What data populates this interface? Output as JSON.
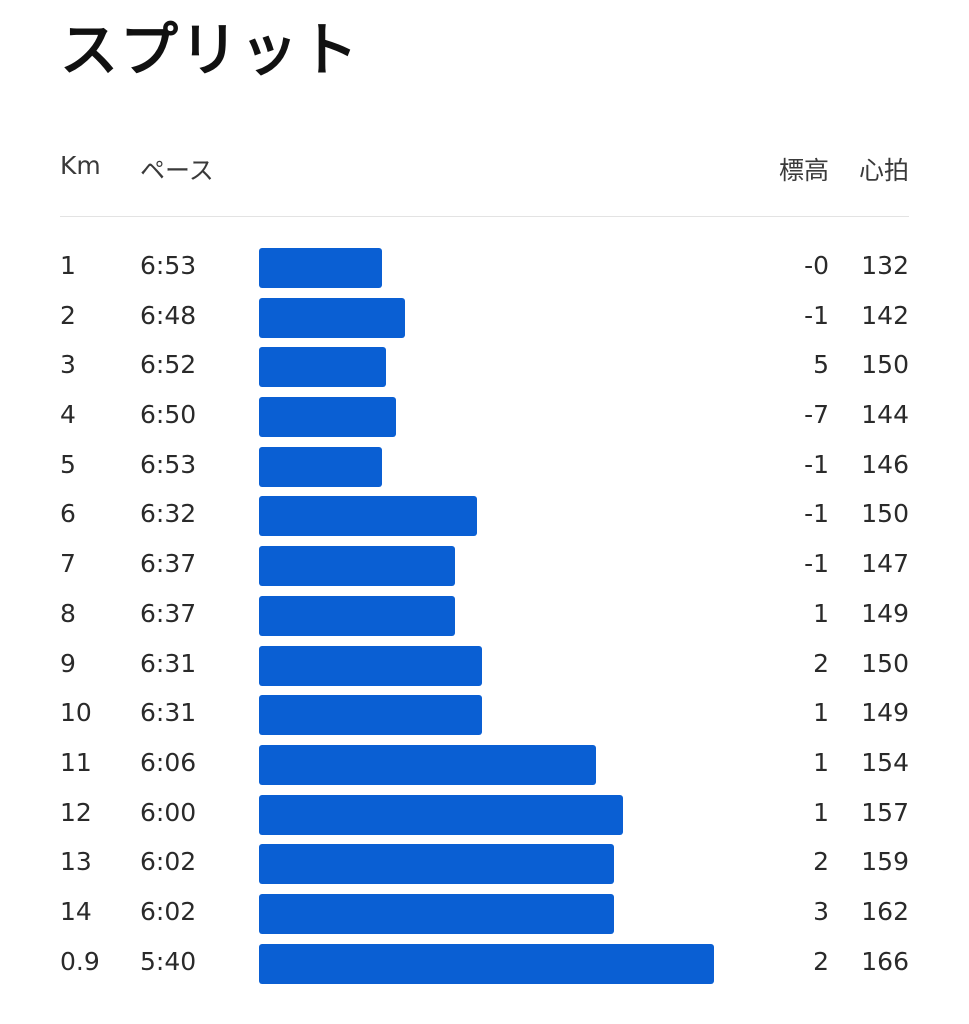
{
  "title": "スプリット",
  "headers": {
    "km": "Km",
    "pace": "ペース",
    "elevation": "標高",
    "heart_rate": "心拍"
  },
  "colors": {
    "bar": "#0a5fd3"
  },
  "splits": [
    {
      "km": "1",
      "pace": "6:53",
      "elevation": "-0",
      "heart_rate": "132"
    },
    {
      "km": "2",
      "pace": "6:48",
      "elevation": "-1",
      "heart_rate": "142"
    },
    {
      "km": "3",
      "pace": "6:52",
      "elevation": "5",
      "heart_rate": "150"
    },
    {
      "km": "4",
      "pace": "6:50",
      "elevation": "-7",
      "heart_rate": "144"
    },
    {
      "km": "5",
      "pace": "6:53",
      "elevation": "-1",
      "heart_rate": "146"
    },
    {
      "km": "6",
      "pace": "6:32",
      "elevation": "-1",
      "heart_rate": "150"
    },
    {
      "km": "7",
      "pace": "6:37",
      "elevation": "-1",
      "heart_rate": "147"
    },
    {
      "km": "8",
      "pace": "6:37",
      "elevation": "1",
      "heart_rate": "149"
    },
    {
      "km": "9",
      "pace": "6:31",
      "elevation": "2",
      "heart_rate": "150"
    },
    {
      "km": "10",
      "pace": "6:31",
      "elevation": "1",
      "heart_rate": "149"
    },
    {
      "km": "11",
      "pace": "6:06",
      "elevation": "1",
      "heart_rate": "154"
    },
    {
      "km": "12",
      "pace": "6:00",
      "elevation": "1",
      "heart_rate": "157"
    },
    {
      "km": "13",
      "pace": "6:02",
      "elevation": "2",
      "heart_rate": "159"
    },
    {
      "km": "14",
      "pace": "6:02",
      "elevation": "3",
      "heart_rate": "162"
    },
    {
      "km": "0.9",
      "pace": "5:40",
      "elevation": "2",
      "heart_rate": "166"
    }
  ]
}
